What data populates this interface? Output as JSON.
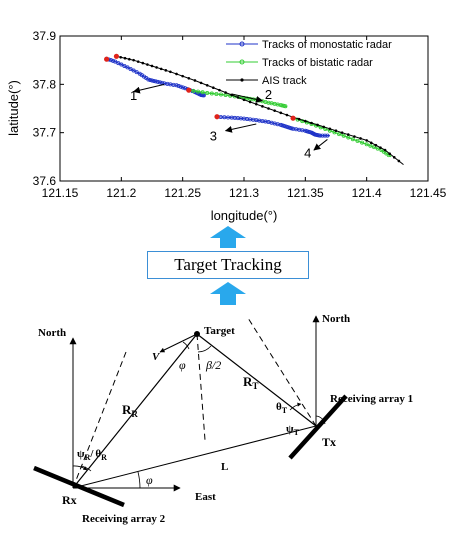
{
  "chart_data": {
    "type": "line",
    "xlabel": "longitude(°)",
    "ylabel": "latitude(°)",
    "xlim": [
      121.15,
      121.45
    ],
    "ylim": [
      37.6,
      37.9
    ],
    "xticks": [
      "121.15",
      "121.2",
      "121.25",
      "121.3",
      "121.35",
      "121.4",
      "121.45"
    ],
    "yticks": [
      "37.6",
      "37.7",
      "37.8",
      "37.9"
    ],
    "legend_position": "top-right",
    "grid": false,
    "legend": [
      {
        "label": "Tracks of monostatic radar",
        "color": "#1f33c8",
        "marker": "circle"
      },
      {
        "label": "Tracks of bistatic radar",
        "color": "#33cc33",
        "marker": "circle"
      },
      {
        "label": "AIS track",
        "color": "#000000",
        "marker": "dot"
      }
    ],
    "series": [
      {
        "name": "Tracks of monostatic radar",
        "color": "#1f33c8",
        "segments": [
          [
            [
              121.188,
              37.853
            ],
            [
              121.195,
              37.847
            ],
            [
              121.205,
              37.835
            ],
            [
              121.215,
              37.822
            ],
            [
              121.222,
              37.81
            ],
            [
              121.228,
              37.806
            ],
            [
              121.235,
              37.802
            ],
            [
              121.245,
              37.798
            ],
            [
              121.252,
              37.792
            ],
            [
              121.26,
              37.784
            ],
            [
              121.265,
              37.778
            ],
            [
              121.268,
              37.777
            ]
          ],
          [
            [
              121.278,
              37.733
            ],
            [
              121.29,
              37.731
            ],
            [
              121.3,
              37.729
            ],
            [
              121.31,
              37.726
            ],
            [
              121.32,
              37.722
            ],
            [
              121.33,
              37.716
            ],
            [
              121.335,
              37.712
            ],
            [
              121.34,
              37.708
            ],
            [
              121.35,
              37.704
            ],
            [
              121.355,
              37.7
            ],
            [
              121.358,
              37.696
            ],
            [
              121.362,
              37.694
            ],
            [
              121.37,
              37.694
            ]
          ]
        ]
      },
      {
        "name": "Tracks of bistatic radar",
        "color": "#33cc33",
        "segments": [
          [
            [
              121.255,
              37.788
            ],
            [
              121.27,
              37.782
            ],
            [
              121.285,
              37.778
            ],
            [
              121.3,
              37.772
            ],
            [
              121.31,
              37.768
            ],
            [
              121.32,
              37.762
            ],
            [
              121.33,
              37.757
            ],
            [
              121.335,
              37.754
            ]
          ],
          [
            [
              121.34,
              37.73
            ],
            [
              121.355,
              37.718
            ],
            [
              121.37,
              37.704
            ],
            [
              121.385,
              37.69
            ],
            [
              121.4,
              37.676
            ],
            [
              121.412,
              37.664
            ],
            [
              121.42,
              37.65
            ]
          ]
        ]
      },
      {
        "name": "AIS track",
        "color": "#000000",
        "segments": [
          [
            [
              121.196,
              37.858
            ],
            [
              121.21,
              37.85
            ],
            [
              121.225,
              37.838
            ],
            [
              121.24,
              37.826
            ],
            [
              121.26,
              37.808
            ],
            [
              121.28,
              37.788
            ],
            [
              121.3,
              37.768
            ],
            [
              121.32,
              37.75
            ],
            [
              121.34,
              37.732
            ],
            [
              121.36,
              37.716
            ],
            [
              121.38,
              37.7
            ],
            [
              121.4,
              37.684
            ],
            [
              121.415,
              37.664
            ],
            [
              121.43,
              37.634
            ]
          ]
        ]
      }
    ],
    "red_points": [
      [
        121.188,
        37.852
      ],
      [
        121.196,
        37.858
      ],
      [
        121.255,
        37.788
      ],
      [
        121.278,
        37.733
      ],
      [
        121.34,
        37.73
      ]
    ],
    "annotations": [
      {
        "text": "1",
        "arrow_from": [
          121.235,
          37.8
        ],
        "arrow_to": [
          121.21,
          37.785
        ],
        "label_at": [
          121.21,
          37.768
        ]
      },
      {
        "text": "2",
        "arrow_from": [
          121.29,
          37.78
        ],
        "arrow_to": [
          121.315,
          37.766
        ],
        "label_at": [
          121.32,
          37.77
        ]
      },
      {
        "text": "3",
        "arrow_from": [
          121.31,
          37.718
        ],
        "arrow_to": [
          121.285,
          37.704
        ],
        "label_at": [
          121.275,
          37.684
        ]
      },
      {
        "text": "4",
        "arrow_from": [
          121.368,
          37.686
        ],
        "arrow_to": [
          121.357,
          37.664
        ],
        "label_at": [
          121.352,
          37.649
        ]
      }
    ]
  },
  "tracking_box": {
    "label": "Target Tracking"
  },
  "geometry": {
    "north_left": "North",
    "north_right": "North",
    "east": "East",
    "target": "Target",
    "rx": "Rx",
    "tx": "Tx",
    "receiving_array_1": "Receiving array 1",
    "receiving_array_2": "Receiving array 2",
    "V": "V",
    "phi_angle": "φ",
    "beta_half": "β/2",
    "RR_main": "R",
    "RR_sub": "R",
    "RT_main": "R",
    "RT_sub": "T",
    "thetaT_main": "θ",
    "thetaT_sub": "T",
    "psiT_main": "ψ",
    "psiT_sub": "T",
    "psiR_main": "ψ",
    "psiR_sub": "R",
    "thetaR_main": "θ",
    "thetaR_sub": "R",
    "slash": "/",
    "L": "L",
    "phi_bottom": "φ"
  }
}
